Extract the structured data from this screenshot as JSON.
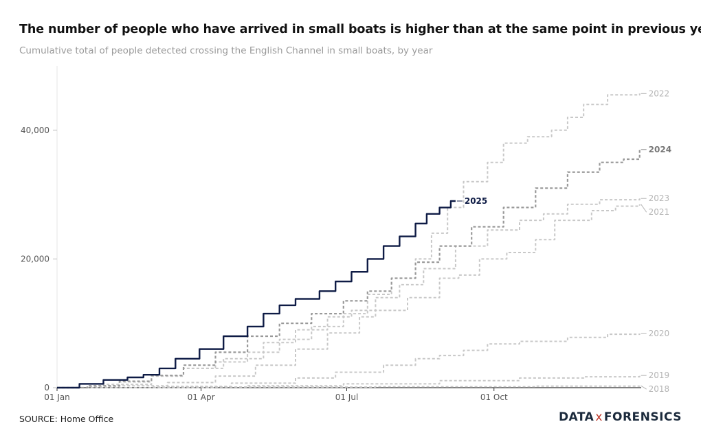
{
  "title": "The number of people who have arrived in small boats is higher than at the same point in previous years",
  "subtitle": "Cumulative total of people detected crossing the English Channel in small boats, by year",
  "source": "SOURCE: Home Office",
  "logo": {
    "left": "DATA",
    "mid": "x",
    "right": "FORENSICS"
  },
  "colors": {
    "highlight": "#0e1b45",
    "emphasis": "#999999",
    "muted": "#c8c8c8",
    "axis": "#333333",
    "grid": "#e6e6e6"
  },
  "chart_data": {
    "type": "line",
    "x_kind": "day-of-year",
    "xlim": [
      1,
      366
    ],
    "ylim": [
      0,
      50000
    ],
    "y_ticks": [
      0,
      20000,
      40000
    ],
    "y_tick_labels": [
      "0",
      "20,000",
      "40,000"
    ],
    "x_ticks": [
      1,
      91,
      182,
      274
    ],
    "x_tick_labels": [
      "01 Jan",
      "01 Apr",
      "01 Jul",
      "01 Oct"
    ],
    "series": [
      {
        "name": "2018",
        "style": "muted",
        "points": [
          [
            1,
            0
          ],
          [
            100,
            100
          ],
          [
            200,
            150
          ],
          [
            300,
            250
          ],
          [
            365,
            300
          ]
        ]
      },
      {
        "name": "2019",
        "style": "muted",
        "points": [
          [
            1,
            0
          ],
          [
            60,
            100
          ],
          [
            120,
            300
          ],
          [
            180,
            600
          ],
          [
            240,
            1100
          ],
          [
            290,
            1500
          ],
          [
            330,
            1700
          ],
          [
            365,
            1900
          ]
        ]
      },
      {
        "name": "2020",
        "style": "muted",
        "points": [
          [
            1,
            0
          ],
          [
            70,
            200
          ],
          [
            110,
            700
          ],
          [
            150,
            1500
          ],
          [
            175,
            2400
          ],
          [
            205,
            3500
          ],
          [
            225,
            4500
          ],
          [
            240,
            5000
          ],
          [
            255,
            5800
          ],
          [
            270,
            6800
          ],
          [
            290,
            7200
          ],
          [
            320,
            7800
          ],
          [
            345,
            8300
          ],
          [
            365,
            8400
          ]
        ]
      },
      {
        "name": "2021",
        "style": "muted",
        "points": [
          [
            1,
            0
          ],
          [
            40,
            300
          ],
          [
            70,
            800
          ],
          [
            100,
            1800
          ],
          [
            125,
            3500
          ],
          [
            150,
            6000
          ],
          [
            170,
            8500
          ],
          [
            190,
            11000
          ],
          [
            200,
            12000
          ],
          [
            220,
            14000
          ],
          [
            240,
            17000
          ],
          [
            252,
            17500
          ],
          [
            265,
            20000
          ],
          [
            282,
            21000
          ],
          [
            300,
            23000
          ],
          [
            312,
            26000
          ],
          [
            335,
            27500
          ],
          [
            350,
            28200
          ],
          [
            365,
            28500
          ]
        ]
      },
      {
        "name": "2022",
        "style": "muted",
        "points": [
          [
            1,
            0
          ],
          [
            20,
            200
          ],
          [
            40,
            900
          ],
          [
            60,
            1800
          ],
          [
            80,
            3000
          ],
          [
            100,
            4000
          ],
          [
            120,
            5500
          ],
          [
            140,
            7500
          ],
          [
            160,
            9500
          ],
          [
            180,
            11500
          ],
          [
            195,
            14500
          ],
          [
            210,
            17000
          ],
          [
            225,
            20000
          ],
          [
            235,
            24000
          ],
          [
            245,
            28000
          ],
          [
            255,
            32000
          ],
          [
            270,
            35000
          ],
          [
            280,
            38000
          ],
          [
            295,
            39000
          ],
          [
            310,
            40000
          ],
          [
            320,
            42000
          ],
          [
            330,
            44000
          ],
          [
            345,
            45500
          ],
          [
            365,
            45700
          ]
        ]
      },
      {
        "name": "2023",
        "style": "muted",
        "points": [
          [
            1,
            0
          ],
          [
            30,
            500
          ],
          [
            60,
            1800
          ],
          [
            80,
            3000
          ],
          [
            105,
            4500
          ],
          [
            130,
            7000
          ],
          [
            150,
            9000
          ],
          [
            170,
            11000
          ],
          [
            185,
            12000
          ],
          [
            200,
            14000
          ],
          [
            215,
            16000
          ],
          [
            230,
            18500
          ],
          [
            250,
            22000
          ],
          [
            270,
            24500
          ],
          [
            290,
            26000
          ],
          [
            305,
            27000
          ],
          [
            320,
            28500
          ],
          [
            340,
            29200
          ],
          [
            365,
            29400
          ]
        ]
      },
      {
        "name": "2024",
        "style": "emphasis",
        "points": [
          [
            1,
            0
          ],
          [
            20,
            300
          ],
          [
            40,
            1000
          ],
          [
            60,
            1900
          ],
          [
            80,
            3500
          ],
          [
            100,
            5500
          ],
          [
            120,
            8000
          ],
          [
            140,
            10000
          ],
          [
            160,
            11500
          ],
          [
            180,
            13500
          ],
          [
            195,
            15000
          ],
          [
            210,
            17000
          ],
          [
            225,
            19500
          ],
          [
            240,
            22000
          ],
          [
            260,
            25000
          ],
          [
            280,
            28000
          ],
          [
            300,
            31000
          ],
          [
            320,
            33500
          ],
          [
            340,
            35000
          ],
          [
            355,
            35500
          ],
          [
            365,
            37000
          ]
        ]
      },
      {
        "name": "2025",
        "style": "highlight",
        "points": [
          [
            1,
            0
          ],
          [
            15,
            600
          ],
          [
            30,
            1200
          ],
          [
            45,
            1600
          ],
          [
            55,
            2000
          ],
          [
            65,
            3000
          ],
          [
            75,
            4500
          ],
          [
            90,
            6000
          ],
          [
            105,
            8000
          ],
          [
            120,
            9500
          ],
          [
            130,
            11500
          ],
          [
            140,
            12800
          ],
          [
            150,
            13800
          ],
          [
            165,
            15000
          ],
          [
            175,
            16500
          ],
          [
            185,
            18000
          ],
          [
            195,
            20000
          ],
          [
            205,
            22000
          ],
          [
            215,
            23500
          ],
          [
            225,
            25500
          ],
          [
            232,
            27000
          ],
          [
            240,
            28000
          ],
          [
            247,
            29000
          ],
          [
            250,
            29000
          ]
        ]
      }
    ],
    "end_labels": [
      {
        "series": "2022",
        "text": "2022"
      },
      {
        "series": "2024",
        "text": "2024"
      },
      {
        "series": "2023",
        "text": "2023"
      },
      {
        "series": "2021",
        "text": "2021"
      },
      {
        "series": "2020",
        "text": "2020"
      },
      {
        "series": "2019",
        "text": "2019"
      },
      {
        "series": "2018",
        "text": "2018"
      },
      {
        "series": "2025",
        "text": "2025"
      }
    ]
  }
}
